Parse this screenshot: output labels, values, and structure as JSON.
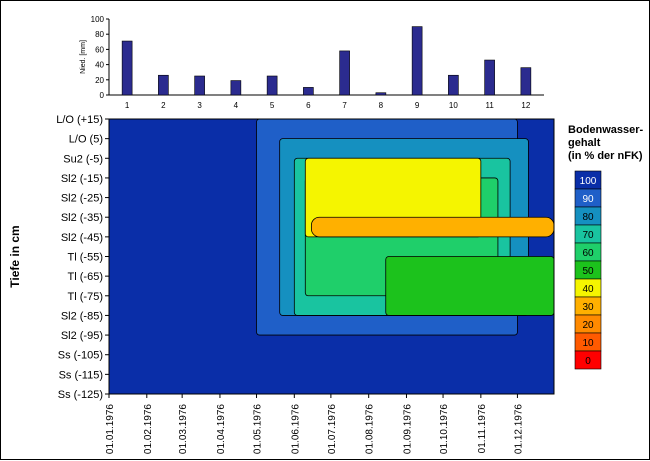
{
  "chart_data": [
    {
      "type": "bar",
      "ylabel": "Nied. [mm]",
      "ylim": [
        0,
        100
      ],
      "yticks": [
        0,
        20,
        40,
        60,
        80,
        100
      ],
      "categories": [
        "1",
        "2",
        "3",
        "4",
        "5",
        "6",
        "7",
        "8",
        "9",
        "10",
        "11",
        "12"
      ],
      "values": [
        71,
        26,
        25,
        19,
        25,
        10,
        58,
        3,
        90,
        26,
        46,
        36
      ],
      "bar_color": "#2b2b8f"
    },
    {
      "type": "heatmap",
      "ylabel": "Tiefe in cm",
      "y_categories": [
        "L/O (+15)",
        "L/O (5)",
        "Su2 (-5)",
        "Sl2 (-15)",
        "Sl2 (-25)",
        "Sl2 (-35)",
        "Sl2 (-45)",
        "Tl (-55)",
        "Tl (-65)",
        "Tl (-75)",
        "Sl2 (-85)",
        "Sl2 (-95)",
        "Ss (-105)",
        "Ss (-115)",
        "Ss (-125)"
      ],
      "x_dates": [
        "01.01.1976",
        "01.02.1976",
        "01.03.1976",
        "01.04.1976",
        "01.05.1976",
        "01.06.1976",
        "01.07.1976",
        "01.08.1976",
        "01.09.1976",
        "01.10.1976",
        "01.11.1976",
        "01.12.1976"
      ],
      "legend_title": [
        "Bodenwasser-",
        "gehalt",
        "(in % der nFK)"
      ],
      "legend_levels": [
        {
          "label": "100",
          "color": "#0a2ea8"
        },
        {
          "label": "90",
          "color": "#1f5fc8"
        },
        {
          "label": "80",
          "color": "#1590c0"
        },
        {
          "label": "70",
          "color": "#19c4a0"
        },
        {
          "label": "60",
          "color": "#1fcf6a"
        },
        {
          "label": "50",
          "color": "#1cc21c"
        },
        {
          "label": "40",
          "color": "#f5f500"
        },
        {
          "label": "30",
          "color": "#ffb000"
        },
        {
          "label": "20",
          "color": "#ff8a00"
        },
        {
          "label": "10",
          "color": "#ff5a00"
        },
        {
          "label": "0",
          "color": "#ff0000"
        }
      ],
      "background_level": "100",
      "regions": [
        {
          "level": "90",
          "from": "01.05.1976",
          "to": "01.12.1976",
          "y_from": "L/O (+15)",
          "y_to": "Sl2 (-95)"
        },
        {
          "level": "80",
          "from": "20.05.1976",
          "to": "10.12.1976",
          "y_from": "L/O (5)",
          "y_to": "Sl2 (-85)"
        },
        {
          "level": "70",
          "from": "01.06.1976",
          "to": "25.11.1976",
          "y_from": "Su2 (-5)",
          "y_to": "Sl2 (-85)"
        },
        {
          "level": "60",
          "from": "10.06.1976",
          "to": "15.11.1976",
          "y_from": "Sl2 (-15)",
          "y_to": "Tl (-75)"
        },
        {
          "level": "50",
          "from": "15.08.1976",
          "to": "31.12.1976",
          "y_from": "Tl (-55)",
          "y_to": "Sl2 (-85)"
        },
        {
          "level": "40",
          "from": "10.06.1976",
          "to": "01.11.1976",
          "y_from": "Su2 (-5)",
          "y_to": "Sl2 (-45)"
        },
        {
          "level": "30",
          "from": "15.06.1976",
          "to": "31.12.1976",
          "y_from": "Sl2 (-35)",
          "y_to": "Sl2 (-45)"
        }
      ]
    }
  ]
}
